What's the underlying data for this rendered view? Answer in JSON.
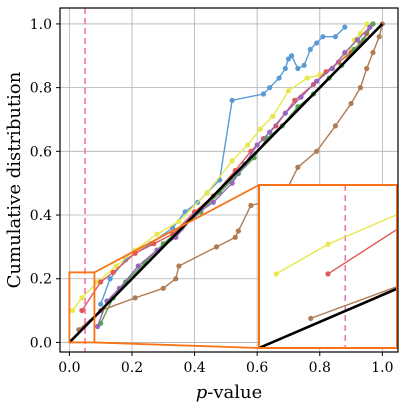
{
  "chart_data": {
    "type": "line",
    "xlabel_italic": "p",
    "xlabel_rest": "-value",
    "ylabel": "Cumulative distribution",
    "xlim": [
      -0.03,
      1.05
    ],
    "ylim": [
      -0.03,
      1.05
    ],
    "x_ticks": [
      0.0,
      0.2,
      0.4,
      0.6,
      0.8,
      1.0
    ],
    "y_ticks": [
      0.0,
      0.2,
      0.4,
      0.6,
      0.8,
      1.0
    ],
    "x_tick_labels": [
      "0.0",
      "0.2",
      "0.4",
      "0.6",
      "0.8",
      "1.0"
    ],
    "y_tick_labels": [
      "0.0",
      "0.2",
      "0.4",
      "0.6",
      "0.8",
      "1.0"
    ],
    "grid": true,
    "reference_line": {
      "x": [
        0,
        1
      ],
      "y": [
        0,
        1
      ],
      "color": "#000000"
    },
    "threshold_line": {
      "x": 0.05,
      "color": "#f472b6",
      "style": "dashed"
    },
    "inset_highlight_color": "#f97316",
    "inset_zoom_region": {
      "x": [
        0.0,
        0.08
      ],
      "y": [
        0.0,
        0.22
      ]
    },
    "series": [
      {
        "color": "#5b9bd5",
        "x": [
          0.1,
          0.13,
          0.18,
          0.26,
          0.33,
          0.37,
          0.41,
          0.44,
          0.48,
          0.52,
          0.62,
          0.64,
          0.67,
          0.69,
          0.7,
          0.71,
          0.73,
          0.75,
          0.77,
          0.79,
          0.81,
          0.85,
          0.88
        ],
        "y": [
          0.12,
          0.2,
          0.26,
          0.31,
          0.36,
          0.41,
          0.44,
          0.47,
          0.51,
          0.76,
          0.78,
          0.8,
          0.83,
          0.86,
          0.89,
          0.9,
          0.86,
          0.87,
          0.92,
          0.94,
          0.96,
          0.96,
          0.99
        ]
      },
      {
        "color": "#e8e84a",
        "x": [
          0.01,
          0.04,
          0.09,
          0.15,
          0.21,
          0.28,
          0.35,
          0.44,
          0.52,
          0.57,
          0.61,
          0.65,
          0.7,
          0.76,
          0.8,
          0.84,
          0.88,
          0.9,
          0.91,
          0.93,
          0.95
        ],
        "y": [
          0.1,
          0.14,
          0.19,
          0.24,
          0.29,
          0.34,
          0.38,
          0.47,
          0.57,
          0.62,
          0.67,
          0.71,
          0.79,
          0.83,
          0.84,
          0.86,
          0.9,
          0.92,
          0.95,
          0.97,
          1.0
        ]
      },
      {
        "color": "#e15759",
        "x": [
          0.04,
          0.1,
          0.14,
          0.21,
          0.27,
          0.33,
          0.4,
          0.46,
          0.53,
          0.58,
          0.62,
          0.66,
          0.72,
          0.78,
          0.82,
          0.86,
          0.9,
          0.93,
          0.95,
          0.97
        ],
        "y": [
          0.1,
          0.19,
          0.22,
          0.28,
          0.31,
          0.34,
          0.41,
          0.46,
          0.54,
          0.6,
          0.64,
          0.68,
          0.76,
          0.81,
          0.85,
          0.88,
          0.91,
          0.94,
          0.97,
          1.0
        ]
      },
      {
        "color": "#59a14f",
        "x": [
          0.1,
          0.14,
          0.18,
          0.24,
          0.3,
          0.36,
          0.42,
          0.48,
          0.54,
          0.59,
          0.63,
          0.68,
          0.73,
          0.78,
          0.83,
          0.87,
          0.91,
          0.94,
          0.97
        ],
        "y": [
          0.06,
          0.14,
          0.19,
          0.25,
          0.31,
          0.36,
          0.41,
          0.47,
          0.53,
          0.58,
          0.64,
          0.68,
          0.74,
          0.78,
          0.83,
          0.87,
          0.92,
          0.95,
          1.0
        ]
      },
      {
        "color": "#9467bd",
        "x": [
          0.09,
          0.12,
          0.16,
          0.22,
          0.28,
          0.34,
          0.4,
          0.46,
          0.52,
          0.56,
          0.6,
          0.64,
          0.69,
          0.74,
          0.79,
          0.84,
          0.88,
          0.92,
          0.96
        ],
        "y": [
          0.05,
          0.13,
          0.17,
          0.24,
          0.29,
          0.33,
          0.4,
          0.44,
          0.5,
          0.56,
          0.62,
          0.66,
          0.72,
          0.77,
          0.82,
          0.86,
          0.91,
          0.95,
          0.99
        ]
      },
      {
        "color": "#b07a52",
        "x": [
          0.03,
          0.1,
          0.21,
          0.3,
          0.34,
          0.35,
          0.47,
          0.53,
          0.54,
          0.58,
          0.66,
          0.7,
          0.73,
          0.79,
          0.85,
          0.9,
          0.93,
          0.95,
          0.97,
          0.99,
          1.0
        ],
        "y": [
          0.04,
          0.1,
          0.14,
          0.17,
          0.2,
          0.24,
          0.3,
          0.33,
          0.35,
          0.43,
          0.45,
          0.49,
          0.55,
          0.6,
          0.68,
          0.75,
          0.8,
          0.86,
          0.91,
          0.96,
          1.0
        ]
      }
    ]
  }
}
